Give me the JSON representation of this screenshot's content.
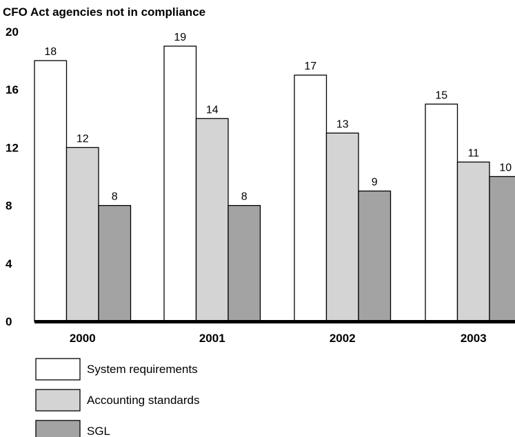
{
  "chart_data": {
    "type": "bar",
    "title": "",
    "ylabel": "CFO Act agencies not in compliance",
    "xlabel": "",
    "ylim": [
      0,
      20
    ],
    "yticks": [
      0,
      4,
      8,
      12,
      16,
      20
    ],
    "categories": [
      "2000",
      "2001",
      "2002",
      "2003"
    ],
    "series": [
      {
        "name": "System requirements",
        "values": [
          18,
          19,
          17,
          15
        ],
        "color": "#ffffff"
      },
      {
        "name": "Accounting standards",
        "values": [
          12,
          14,
          13,
          11
        ],
        "color": "#d4d4d4"
      },
      {
        "name": "SGL",
        "values": [
          8,
          8,
          9,
          10
        ],
        "color": "#a3a3a3"
      }
    ],
    "data_labels": true,
    "grid": false,
    "legend": "bottom-left"
  }
}
